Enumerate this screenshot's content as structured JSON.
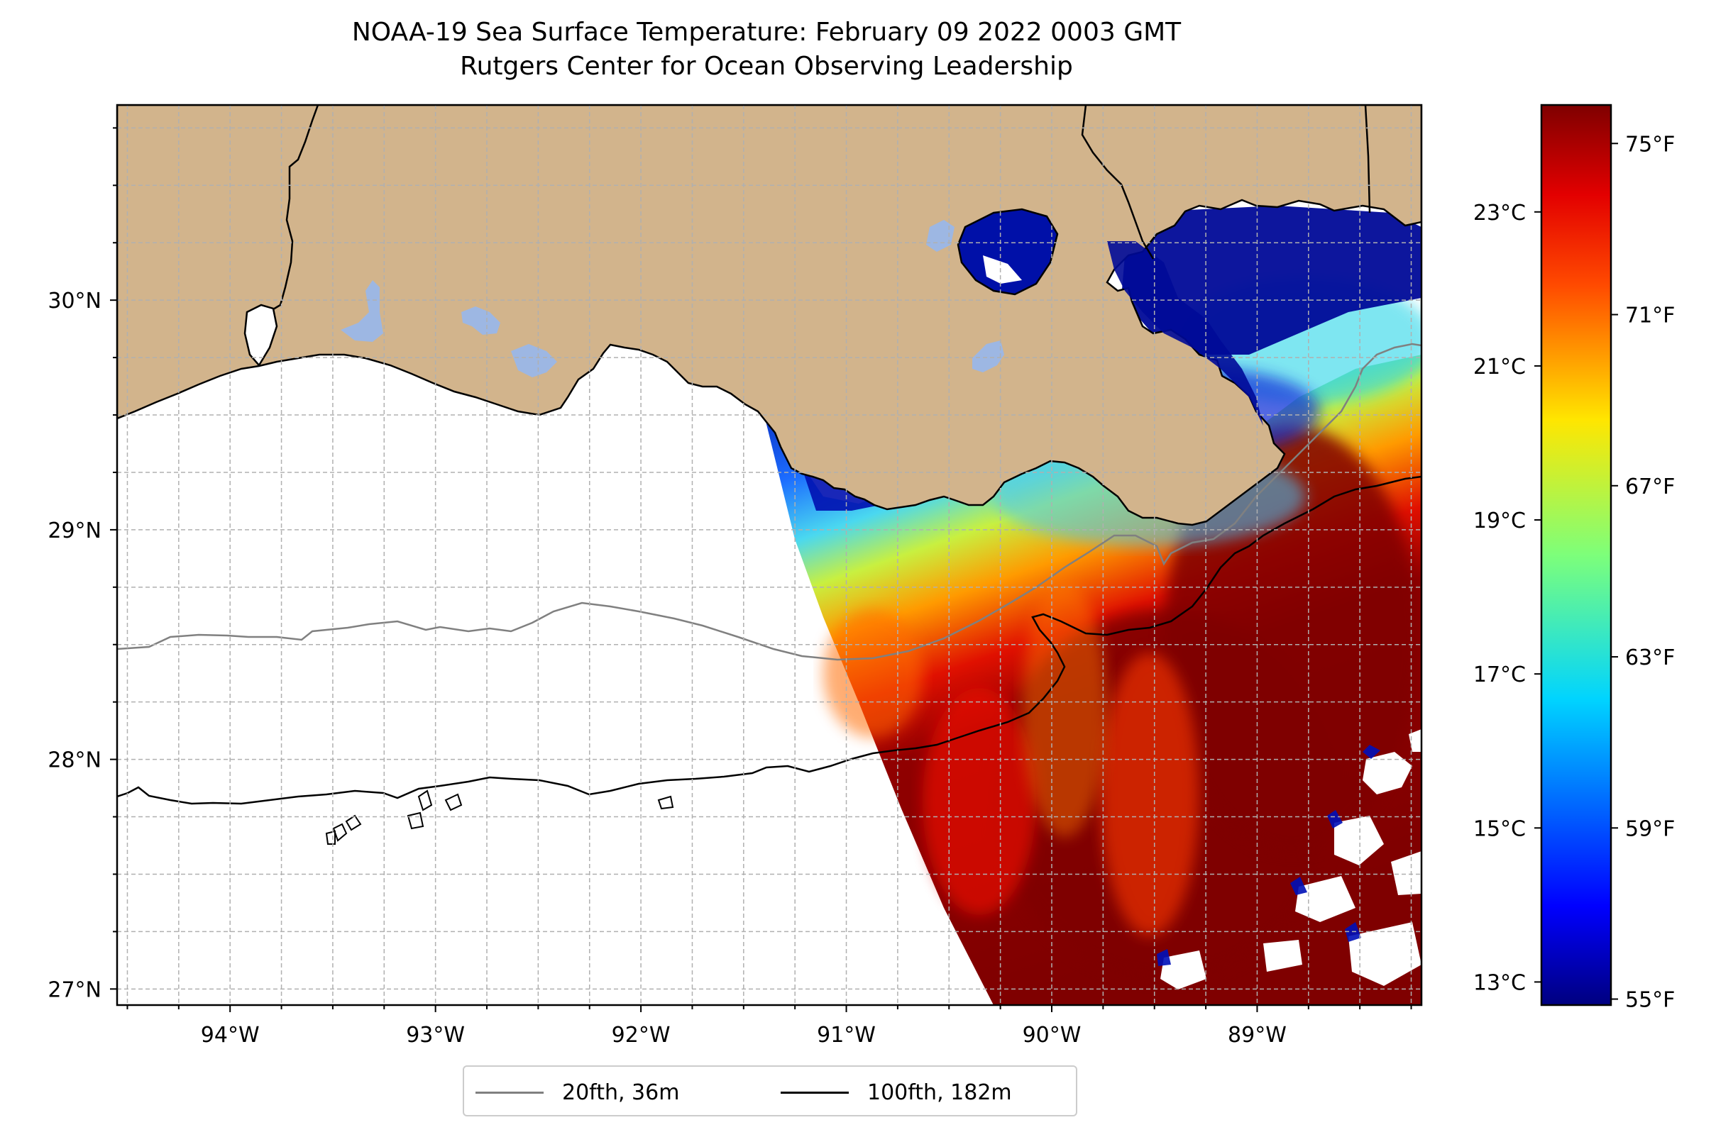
{
  "title": {
    "line1": "NOAA-19 Sea Surface Temperature: February 09 2022 0003 GMT",
    "line2": "Rutgers Center for Ocean Observing Leadership"
  },
  "map": {
    "lon_range": [
      -94.55,
      -88.2
    ],
    "lat_range": [
      26.93,
      30.85
    ],
    "lon_ticks": [
      -94,
      -93,
      -92,
      -91,
      -90,
      -89
    ],
    "lon_tick_labels": [
      "94°W",
      "93°W",
      "92°W",
      "91°W",
      "90°W",
      "89°W"
    ],
    "lat_ticks": [
      27,
      28,
      29,
      30
    ],
    "lat_tick_labels": [
      "27°N",
      "28°N",
      "29°N",
      "30°N"
    ],
    "gridlines": true,
    "colors": {
      "land": "#d2b48c",
      "inland_water": "#9db7e3",
      "isobath_20fth": "#808080",
      "isobath_100fth": "#000000",
      "grid": "#b0b0b0"
    }
  },
  "colorbar": {
    "colormap": "jet",
    "fahrenheit_range": [
      54.86,
      75.9
    ],
    "celsius_ticks": [
      13,
      15,
      17,
      19,
      21,
      23
    ],
    "celsius_tick_labels": [
      "13°C",
      "15°C",
      "17°C",
      "19°C",
      "21°C",
      "23°C"
    ],
    "fahrenheit_ticks": [
      55,
      59,
      63,
      67,
      71,
      75
    ],
    "fahrenheit_tick_labels": [
      "55°F",
      "59°F",
      "63°F",
      "67°F",
      "71°F",
      "75°F"
    ]
  },
  "legend": {
    "placement": "bottom-center",
    "entries": [
      {
        "label": "20fth, 36m",
        "color": "#808080"
      },
      {
        "label": "100fth, 182m",
        "color": "#000000"
      }
    ]
  }
}
